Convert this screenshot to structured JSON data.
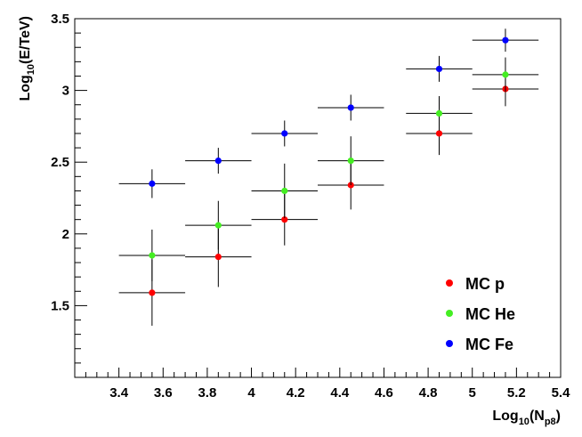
{
  "chart_data": {
    "type": "scatter",
    "title": "",
    "xlabel": {
      "prefix": "Log",
      "base": "10",
      "open": "(N",
      "sub": "p8",
      "close": ")"
    },
    "ylabel": {
      "prefix": "Log",
      "base": "10",
      "rest": "(E/TeV)"
    },
    "xlim": [
      3.2,
      5.4
    ],
    "ylim": [
      1.0,
      3.5
    ],
    "x_ticks": [
      "3.4",
      "3.6",
      "3.8",
      "4",
      "4.2",
      "4.4",
      "4.6",
      "4.8",
      "5",
      "5.2",
      "5.4"
    ],
    "y_ticks": [
      "1.5",
      "2",
      "2.5",
      "3",
      "3.5"
    ],
    "legend_position": "bottom-right",
    "series": [
      {
        "name": "MC p",
        "color": "#ff0000",
        "points": [
          {
            "x": 3.55,
            "y": 1.59,
            "xerr": 0.15,
            "yerr": 0.23
          },
          {
            "x": 3.85,
            "y": 1.84,
            "xerr": 0.15,
            "yerr": 0.21
          },
          {
            "x": 4.15,
            "y": 2.1,
            "xerr": 0.15,
            "yerr": 0.18
          },
          {
            "x": 4.45,
            "y": 2.34,
            "xerr": 0.15,
            "yerr": 0.17
          },
          {
            "x": 4.85,
            "y": 2.7,
            "xerr": 0.15,
            "yerr": 0.15
          },
          {
            "x": 5.15,
            "y": 3.01,
            "xerr": 0.15,
            "yerr": 0.12
          }
        ]
      },
      {
        "name": "MC He",
        "color": "#44ee22",
        "points": [
          {
            "x": 3.55,
            "y": 1.85,
            "xerr": 0.15,
            "yerr": 0.18
          },
          {
            "x": 3.85,
            "y": 2.06,
            "xerr": 0.15,
            "yerr": 0.17
          },
          {
            "x": 4.15,
            "y": 2.3,
            "xerr": 0.15,
            "yerr": 0.19
          },
          {
            "x": 4.45,
            "y": 2.51,
            "xerr": 0.15,
            "yerr": 0.17
          },
          {
            "x": 4.85,
            "y": 2.84,
            "xerr": 0.15,
            "yerr": 0.12
          },
          {
            "x": 5.15,
            "y": 3.11,
            "xerr": 0.15,
            "yerr": 0.12
          }
        ]
      },
      {
        "name": "MC Fe",
        "color": "#0000ff",
        "points": [
          {
            "x": 3.55,
            "y": 2.35,
            "xerr": 0.15,
            "yerr": 0.1
          },
          {
            "x": 3.85,
            "y": 2.51,
            "xerr": 0.15,
            "yerr": 0.09
          },
          {
            "x": 4.15,
            "y": 2.7,
            "xerr": 0.15,
            "yerr": 0.09
          },
          {
            "x": 4.45,
            "y": 2.88,
            "xerr": 0.15,
            "yerr": 0.09
          },
          {
            "x": 4.85,
            "y": 3.15,
            "xerr": 0.15,
            "yerr": 0.09
          },
          {
            "x": 5.15,
            "y": 3.35,
            "xerr": 0.15,
            "yerr": 0.08
          }
        ]
      }
    ]
  }
}
